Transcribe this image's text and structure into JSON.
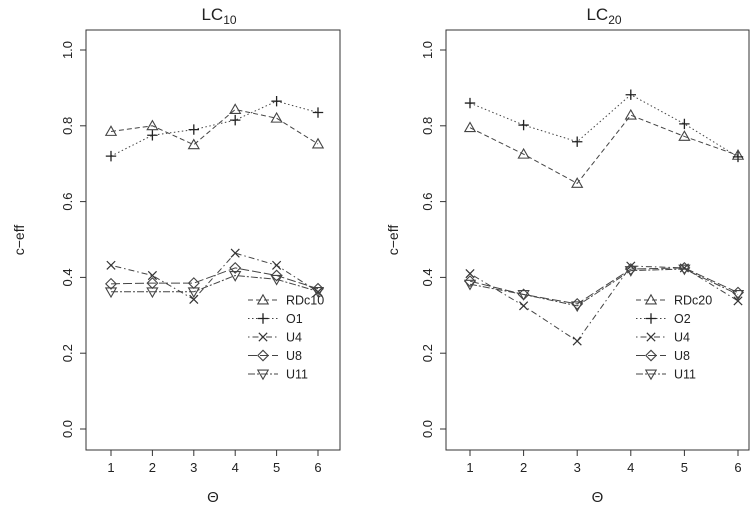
{
  "chart_data": [
    {
      "type": "line",
      "title": "LC",
      "title_sub": "10",
      "xlabel": "Θ",
      "ylabel": "c−eff",
      "x": [
        1,
        2,
        3,
        4,
        5,
        6
      ],
      "xlim": [
        1,
        6
      ],
      "ylim": [
        0,
        1
      ],
      "yticks": [
        "0.0",
        "0.2",
        "0.4",
        "0.6",
        "0.8",
        "1.0"
      ],
      "xticks": [
        "1",
        "2",
        "3",
        "4",
        "5",
        "6"
      ],
      "legend_position": "bottom-right",
      "series": [
        {
          "name": "RDc10",
          "marker": "triangle-up",
          "dash": "dashed",
          "values": [
            0.785,
            0.8,
            0.75,
            0.843,
            0.82,
            0.752
          ]
        },
        {
          "name": "O1",
          "marker": "plus",
          "dash": "dotted",
          "values": [
            0.72,
            0.775,
            0.79,
            0.815,
            0.865,
            0.835
          ]
        },
        {
          "name": "U4",
          "marker": "cross",
          "dash": "dotdash",
          "values": [
            0.432,
            0.405,
            0.342,
            0.464,
            0.432,
            0.362
          ]
        },
        {
          "name": "U8",
          "marker": "diamond",
          "dash": "longdash",
          "values": [
            0.383,
            0.385,
            0.385,
            0.425,
            0.405,
            0.37
          ]
        },
        {
          "name": "U11",
          "marker": "triangle-down",
          "dash": "twodash",
          "values": [
            0.362,
            0.362,
            0.362,
            0.405,
            0.395,
            0.363
          ]
        }
      ]
    },
    {
      "type": "line",
      "title": "LC",
      "title_sub": "20",
      "xlabel": "Θ",
      "ylabel": "c−eff",
      "x": [
        1,
        2,
        3,
        4,
        5,
        6
      ],
      "xlim": [
        1,
        6
      ],
      "ylim": [
        0,
        1
      ],
      "yticks": [
        "0.0",
        "0.2",
        "0.4",
        "0.6",
        "0.8",
        "1.0"
      ],
      "xticks": [
        "1",
        "2",
        "3",
        "4",
        "5",
        "6"
      ],
      "legend_position": "bottom-right",
      "series": [
        {
          "name": "RDc20",
          "marker": "triangle-up",
          "dash": "dashed",
          "values": [
            0.795,
            0.725,
            0.648,
            0.828,
            0.772,
            0.722
          ]
        },
        {
          "name": "O2",
          "marker": "plus",
          "dash": "dotted",
          "values": [
            0.86,
            0.802,
            0.758,
            0.882,
            0.805,
            0.718
          ]
        },
        {
          "name": "U4",
          "marker": "cross",
          "dash": "dotdash",
          "values": [
            0.41,
            0.325,
            0.232,
            0.43,
            0.425,
            0.338
          ]
        },
        {
          "name": "U8",
          "marker": "diamond",
          "dash": "longdash",
          "values": [
            0.39,
            0.355,
            0.33,
            0.422,
            0.425,
            0.36
          ]
        },
        {
          "name": "U11",
          "marker": "triangle-down",
          "dash": "twodash",
          "values": [
            0.382,
            0.355,
            0.325,
            0.418,
            0.422,
            0.355
          ]
        }
      ]
    }
  ]
}
